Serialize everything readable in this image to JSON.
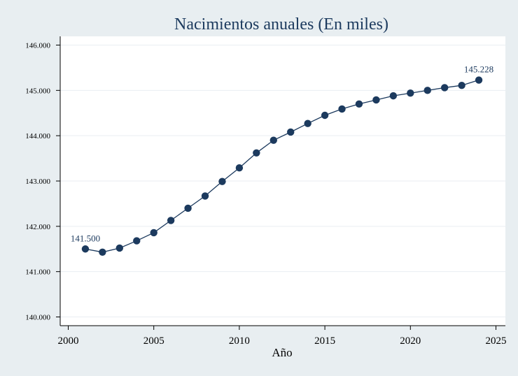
{
  "chart_data": {
    "type": "line",
    "title": "Nacimientos anuales (En miles)",
    "xlabel": "Año",
    "ylabel": "",
    "xlim": [
      2000,
      2025
    ],
    "ylim": [
      140000,
      146000
    ],
    "x_ticks": [
      2000,
      2005,
      2010,
      2015,
      2020,
      2025
    ],
    "y_ticks": [
      140000,
      141000,
      142000,
      143000,
      144000,
      145000,
      146000
    ],
    "y_tick_labels": [
      "140.000",
      "141.000",
      "142.000",
      "143.000",
      "144.000",
      "145.000",
      "146.000"
    ],
    "x_tick_labels": [
      "2000",
      "2005",
      "2010",
      "2015",
      "2020",
      "2025"
    ],
    "grid": true,
    "series": [
      {
        "color": "#1c3a5e",
        "x": [
          2001,
          2002,
          2003,
          2004,
          2005,
          2006,
          2007,
          2008,
          2009,
          2010,
          2011,
          2012,
          2013,
          2014,
          2015,
          2016,
          2017,
          2018,
          2019,
          2020,
          2021,
          2022,
          2023,
          2024
        ],
        "values": [
          141500,
          141430,
          141520,
          141680,
          141860,
          142130,
          142400,
          142670,
          142990,
          143290,
          143620,
          143900,
          144080,
          144270,
          144450,
          144590,
          144700,
          144790,
          144880,
          144940,
          145000,
          145060,
          145110,
          145228
        ]
      }
    ],
    "annotations": [
      {
        "x": 2001,
        "y": 141500,
        "text": "141.500"
      },
      {
        "x": 2024,
        "y": 145228,
        "text": "145.228"
      }
    ]
  }
}
